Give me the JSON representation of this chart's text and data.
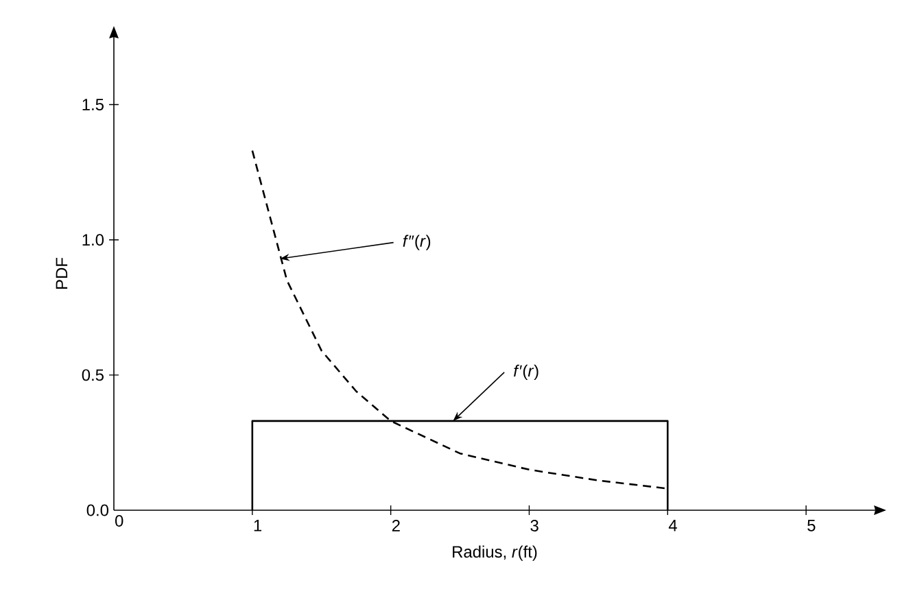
{
  "chart_data": {
    "type": "line",
    "xlabel": "Radius, *r*(ft)",
    "ylabel": "PDF",
    "xlim": [
      0,
      5.5
    ],
    "ylim": [
      0,
      1.75
    ],
    "xticks": [
      0,
      1,
      2,
      3,
      4,
      5
    ],
    "yticks": [
      {
        "value": 0,
        "label": "0.0"
      },
      {
        "value": 0.5,
        "label": "0.5"
      },
      {
        "value": 1,
        "label": "1.0"
      },
      {
        "value": 1.5,
        "label": "1.5"
      }
    ],
    "grid": false,
    "marker": "none",
    "series": [
      {
        "line_style": "dashed",
        "color": "#000000",
        "x": [
          1,
          1.25,
          1.5,
          1.75,
          2,
          2.5,
          3,
          3.5,
          4
        ],
        "values": [
          1.33,
          0.85,
          0.59,
          0.44,
          0.33,
          0.21,
          0.15,
          0.11,
          0.08
        ]
      },
      {
        "line_style": "solid",
        "color": "#000000",
        "x": [
          1,
          1,
          4,
          4
        ],
        "values": [
          0,
          0.33,
          0.33,
          0
        ]
      }
    ],
    "annotations": [
      {
        "text": "*f*″(*r*)",
        "x": 1.2,
        "y": 0.93
      },
      {
        "text": "*f*′(*r*)",
        "x": 2.45,
        "y": 0.33
      }
    ]
  }
}
